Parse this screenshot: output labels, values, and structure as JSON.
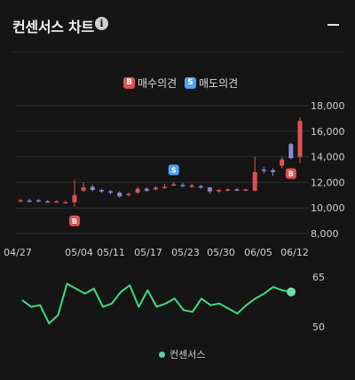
{
  "header": {
    "title": "컨센서스 차트",
    "info_icon": "i"
  },
  "legend": {
    "buy_badge": "B",
    "buy_label": "매수의견",
    "sell_badge": "S",
    "sell_label": "매도의견"
  },
  "bottom_legend": {
    "label": "컨센서스"
  },
  "colors": {
    "up": "#e05252",
    "down": "#8a8ad8",
    "line": "#3ddc84",
    "buy": "#e05252",
    "sell": "#4ea3f5"
  },
  "chart_data": [
    {
      "type": "candlestick",
      "x_ticks": [
        "04/27",
        "05/04",
        "05/11",
        "05/17",
        "05/23",
        "05/30",
        "06/05",
        "06/12"
      ],
      "y_ticks": [
        "8,000",
        "10,000",
        "12,000",
        "14,000",
        "16,000",
        "18,000"
      ],
      "ylim": [
        8000,
        18000
      ],
      "candles": [
        {
          "o": 10550,
          "c": 10600,
          "h": 10700,
          "l": 10450
        },
        {
          "o": 10580,
          "c": 10560,
          "h": 10700,
          "l": 10450
        },
        {
          "o": 10600,
          "c": 10520,
          "h": 10680,
          "l": 10450
        },
        {
          "o": 10520,
          "c": 10480,
          "h": 10600,
          "l": 10420
        },
        {
          "o": 10500,
          "c": 10520,
          "h": 10600,
          "l": 10420
        },
        {
          "o": 10450,
          "c": 10450,
          "h": 10550,
          "l": 10380
        },
        {
          "o": 10450,
          "c": 11000,
          "h": 12200,
          "l": 10100
        },
        {
          "o": 11350,
          "c": 11600,
          "h": 12000,
          "l": 11250
        },
        {
          "o": 11650,
          "c": 11400,
          "h": 11800,
          "l": 11300
        },
        {
          "o": 11400,
          "c": 11300,
          "h": 11500,
          "l": 11200
        },
        {
          "o": 11300,
          "c": 11200,
          "h": 11400,
          "l": 11050
        },
        {
          "o": 11200,
          "c": 10900,
          "h": 11300,
          "l": 10800
        },
        {
          "o": 11000,
          "c": 11100,
          "h": 11200,
          "l": 10900
        },
        {
          "o": 11200,
          "c": 11500,
          "h": 11650,
          "l": 11100
        },
        {
          "o": 11500,
          "c": 11350,
          "h": 11600,
          "l": 11250
        },
        {
          "o": 11450,
          "c": 11600,
          "h": 11700,
          "l": 11350
        },
        {
          "o": 11600,
          "c": 11650,
          "h": 11850,
          "l": 11500
        },
        {
          "o": 11800,
          "c": 11850,
          "h": 12000,
          "l": 11700
        },
        {
          "o": 11800,
          "c": 11700,
          "h": 11950,
          "l": 11600
        },
        {
          "o": 11650,
          "c": 11750,
          "h": 11900,
          "l": 11550
        },
        {
          "o": 11700,
          "c": 11600,
          "h": 11800,
          "l": 11500
        },
        {
          "o": 11600,
          "c": 11300,
          "h": 11650,
          "l": 11150
        },
        {
          "o": 11300,
          "c": 11400,
          "h": 11500,
          "l": 11200
        },
        {
          "o": 11400,
          "c": 11450,
          "h": 11550,
          "l": 11300
        },
        {
          "o": 11450,
          "c": 11400,
          "h": 11550,
          "l": 11350
        },
        {
          "o": 11400,
          "c": 11450,
          "h": 11500,
          "l": 11300
        },
        {
          "o": 11350,
          "c": 12800,
          "h": 14000,
          "l": 11300
        },
        {
          "o": 13000,
          "c": 12900,
          "h": 13200,
          "l": 12700
        },
        {
          "o": 12950,
          "c": 12800,
          "h": 13100,
          "l": 12500
        },
        {
          "o": 13300,
          "c": 13800,
          "h": 14000,
          "l": 13100
        },
        {
          "o": 15000,
          "c": 13900,
          "h": 15100,
          "l": 13800
        },
        {
          "o": 14000,
          "c": 16800,
          "h": 17100,
          "l": 13500
        }
      ],
      "buy_markers": [
        6,
        30
      ],
      "sell_markers": [
        17
      ]
    },
    {
      "type": "line",
      "series": [
        {
          "values": [
            58,
            56,
            56.5,
            51,
            53.5,
            63,
            61.5,
            60,
            61.5,
            56,
            57,
            60.5,
            62.5,
            56,
            61,
            56,
            57,
            58.5,
            55,
            54.5,
            58.5,
            56.5,
            57,
            55.5,
            54,
            56.5,
            58.5,
            60,
            62,
            61,
            60.5
          ]
        }
      ],
      "y_ticks": [
        "50",
        "65"
      ],
      "ylim": [
        50,
        65
      ]
    }
  ]
}
